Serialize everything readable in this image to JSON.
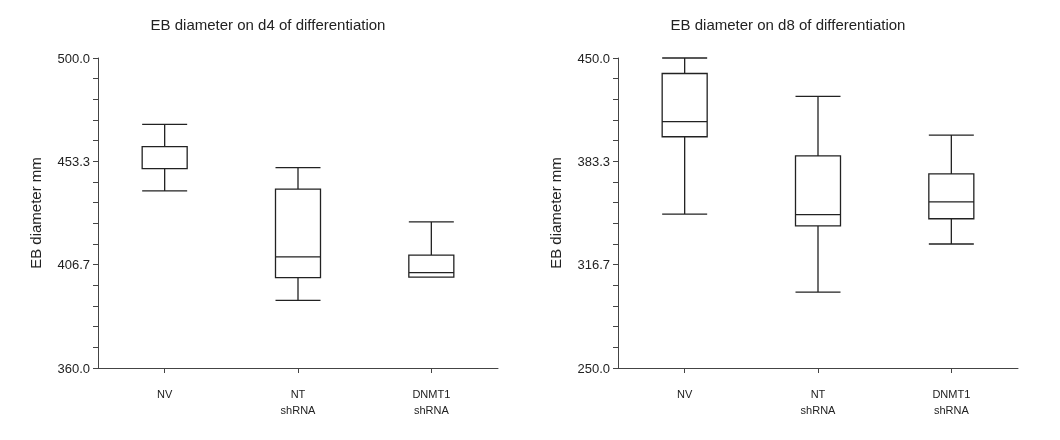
{
  "chart_data": [
    {
      "type": "box",
      "title": "EB diameter on d4 of differentiation",
      "ylabel": "EB diameter mm",
      "categories": [
        "NV",
        "NT\nshRNA",
        "DNMT1\nshRNA"
      ],
      "boxes": [
        {
          "low": 440,
          "q1": 450,
          "median": 460,
          "q3": 460,
          "high": 470
        },
        {
          "low": 390.5,
          "q1": 400.8,
          "median": 410.2,
          "q3": 440.8,
          "high": 450.5
        },
        {
          "low": 401,
          "q1": 401,
          "median": 403.1,
          "q3": 411,
          "high": 426
        }
      ],
      "ylim": [
        360,
        500
      ],
      "yticks": [
        {
          "value": 360,
          "label": "360.0"
        },
        {
          "value": 369.3,
          "label": null
        },
        {
          "value": 378.7,
          "label": null
        },
        {
          "value": 388,
          "label": null
        },
        {
          "value": 397.3,
          "label": null
        },
        406.7,
        {
          "value": 416,
          "label": null
        },
        {
          "value": 425.3,
          "label": null
        },
        {
          "value": 434.7,
          "label": null
        },
        {
          "value": 444,
          "label": null
        },
        453.3,
        {
          "value": 462.7,
          "label": null
        },
        {
          "value": 472,
          "label": null
        },
        {
          "value": 481.3,
          "label": null
        },
        {
          "value": 490.7,
          "label": null
        },
        {
          "value": 500,
          "label": "500.0"
        }
      ],
      "grid": false
    },
    {
      "type": "box",
      "title": "EB diameter on d8 of differentiation",
      "ylabel": "EB diameter mm",
      "categories": [
        "NV",
        "NT\nshRNA",
        "DNMT1\nshRNA"
      ],
      "boxes": [
        {
          "low": 349.3,
          "q1": 399.2,
          "median": 409,
          "q3": 440,
          "high": 450
        },
        {
          "low": 298.9,
          "q1": 341.7,
          "median": 348.9,
          "q3": 386.9,
          "high": 425.3
        },
        {
          "low": 330,
          "q1": 346.3,
          "median": 357.2,
          "q3": 375.2,
          "high": 400.2
        }
      ],
      "ylim": [
        250,
        450
      ],
      "yticks": [
        {
          "value": 250,
          "label": "250.0"
        },
        {
          "value": 263.3,
          "label": null
        },
        {
          "value": 276.7,
          "label": null
        },
        {
          "value": 290,
          "label": null
        },
        {
          "value": 303.3,
          "label": null
        },
        316.7,
        {
          "value": 330,
          "label": null
        },
        {
          "value": 343.3,
          "label": null
        },
        {
          "value": 356.7,
          "label": null
        },
        {
          "value": 370,
          "label": null
        },
        383.3,
        {
          "value": 396.7,
          "label": null
        },
        {
          "value": 410,
          "label": null
        },
        {
          "value": 423.3,
          "label": null
        },
        {
          "value": 436.7,
          "label": null
        },
        {
          "value": 450,
          "label": "450.0"
        }
      ],
      "grid": false
    }
  ]
}
